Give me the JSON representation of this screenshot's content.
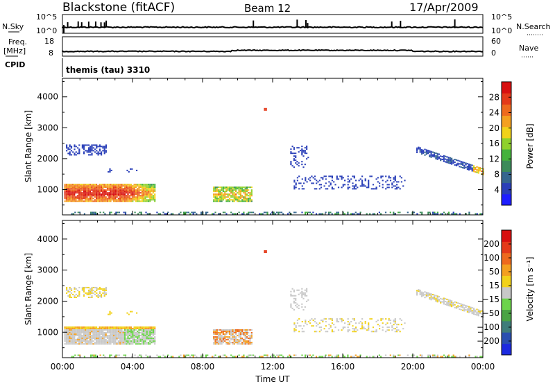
{
  "header": {
    "station": "Blackstone (fitACF)",
    "beam": "Beam 12",
    "date": "17/Apr/2009"
  },
  "strips": {
    "nsky": {
      "left_label": "N.Sky",
      "ticks": [
        "10^5",
        "10^0"
      ],
      "right_label": "N.Search",
      "right_ticks": [
        "10^5",
        "10^0"
      ]
    },
    "freq": {
      "left_label": "Freq.",
      "unit": "[MHz]",
      "ticks": [
        "18",
        "8"
      ],
      "right_label": "Nave",
      "right_ticks": [
        "60",
        "0"
      ]
    },
    "cpid": {
      "left_label": "CPID",
      "text": "themis (tau) 3310"
    }
  },
  "chart_data": [
    {
      "type": "heatmap",
      "title": "",
      "xlabel": "Time UT",
      "ylabel": "Slant Range [km]",
      "x_ticks": [
        "00:00",
        "04:00",
        "08:00",
        "12:00",
        "16:00",
        "20:00",
        "00:00"
      ],
      "xlim": [
        0,
        24
      ],
      "y_ticks": [
        "1000",
        "2000",
        "3000",
        "4000"
      ],
      "ylim": [
        180,
        4600
      ],
      "colorbar": {
        "label": "Power [dB]",
        "tick_labels": [
          "4",
          "8",
          "12",
          "16",
          "20",
          "24",
          "28"
        ],
        "colors": [
          "#1e1eff",
          "#2a3fb8",
          "#35668e",
          "#3c8b5a",
          "#44b23c",
          "#8fd12c",
          "#f2d21a",
          "#f4a020",
          "#ee6a1e",
          "#e43a1a",
          "#d81010"
        ]
      }
    },
    {
      "type": "heatmap",
      "title": "",
      "xlabel": "Time UT",
      "ylabel": "Slant Range [km]",
      "x_ticks": [
        "00:00",
        "04:00",
        "08:00",
        "12:00",
        "16:00",
        "20:00",
        "00:00"
      ],
      "xlim": [
        0,
        24
      ],
      "y_ticks": [
        "1000",
        "2000",
        "3000",
        "4000"
      ],
      "ylim": [
        180,
        4600
      ],
      "colorbar": {
        "label": "Velocity [m s⁻¹]",
        "tick_labels": [
          "200",
          "100",
          "50",
          "15",
          "−15",
          "−50",
          "−100",
          "−200"
        ],
        "colors": [
          "#1c2ae0",
          "#2a4fb0",
          "#3f7d7a",
          "#4aa444",
          "#6cd44a",
          "#c8c8c8",
          "#f2d21a",
          "#f4a020",
          "#ee6a1e",
          "#e43a1a",
          "#d81010"
        ]
      }
    }
  ]
}
